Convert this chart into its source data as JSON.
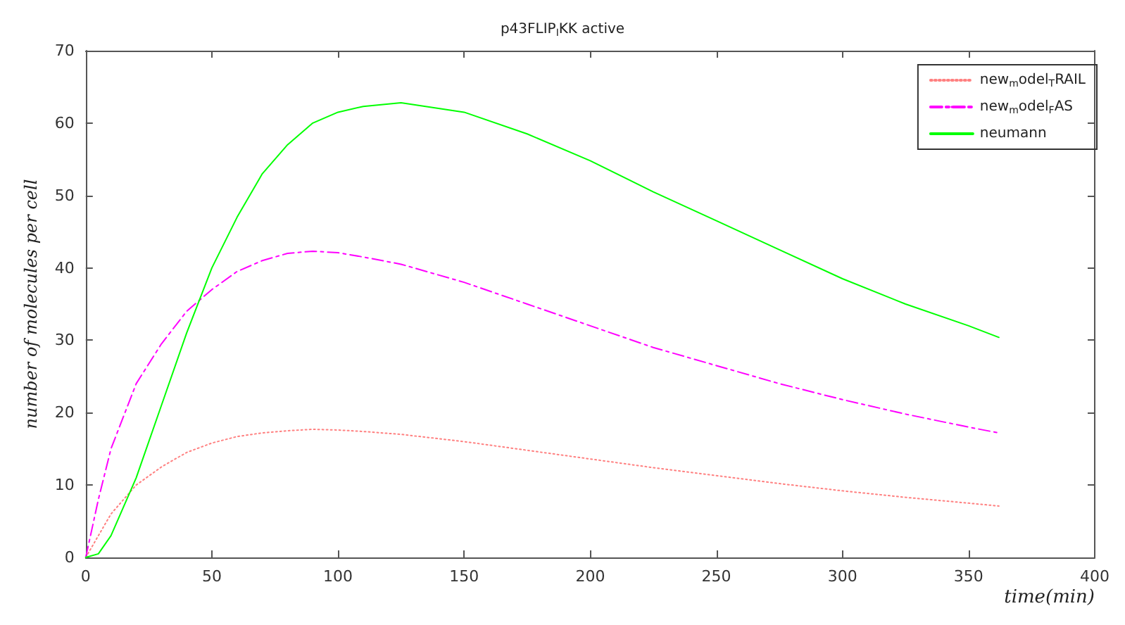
{
  "chart_data": {
    "type": "line",
    "title": "p43FLIP$_{I}$KK active",
    "xlabel": "time(min)",
    "ylabel": "number of molecules per cell",
    "x": [
      0,
      5,
      10,
      20,
      30,
      40,
      50,
      60,
      70,
      80,
      90,
      100,
      110,
      125,
      150,
      175,
      200,
      225,
      250,
      275,
      300,
      325,
      350,
      362
    ],
    "series": [
      {
        "name": "new$_{m}$odel$_{T}$RAIL",
        "color": "#ff8080",
        "line_style": "dotted",
        "values": [
          0,
          3,
          6,
          10,
          12.5,
          14.5,
          15.8,
          16.7,
          17.2,
          17.5,
          17.7,
          17.6,
          17.4,
          17,
          16,
          14.8,
          13.6,
          12.4,
          11.3,
          10.2,
          9.2,
          8.3,
          7.5,
          7.1
        ]
      },
      {
        "name": "new$_{m}$odel$_{F}$AS",
        "color": "#ff00ff",
        "line_style": "dashed",
        "values": [
          0,
          8,
          15,
          24,
          29.5,
          34,
          37,
          39.5,
          41,
          42,
          42.3,
          42.1,
          41.5,
          40.5,
          38,
          35,
          32,
          29,
          26.5,
          24,
          21.8,
          19.8,
          18,
          17.2
        ]
      },
      {
        "name": "neumann",
        "color": "#00ff00",
        "line_style": "solid",
        "values": [
          0,
          0.5,
          3,
          11,
          21,
          31,
          40,
          47,
          53,
          57,
          60,
          61.5,
          62.3,
          62.8,
          61.5,
          58.5,
          54.8,
          50.5,
          46.5,
          42.5,
          38.5,
          35,
          32,
          30.4
        ]
      }
    ],
    "xlim": [
      0,
      400
    ],
    "xticks": [
      0,
      50,
      100,
      150,
      200,
      250,
      300,
      350,
      400
    ],
    "ylim": [
      0,
      70
    ],
    "yticks": [
      0,
      10,
      20,
      30,
      40,
      50,
      60,
      70
    ],
    "grid": false,
    "legend": "top right",
    "marker": "none"
  }
}
